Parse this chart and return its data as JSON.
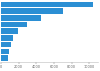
{
  "values": [
    10400,
    7000,
    4500,
    3000,
    1900,
    1400,
    1100,
    950,
    850
  ],
  "bar_color": "#2b8fd4",
  "background_color": "#ffffff",
  "xlim": [
    0,
    11000
  ],
  "bar_height": 0.82,
  "figsize": [
    1.0,
    0.71
  ],
  "dpi": 100
}
